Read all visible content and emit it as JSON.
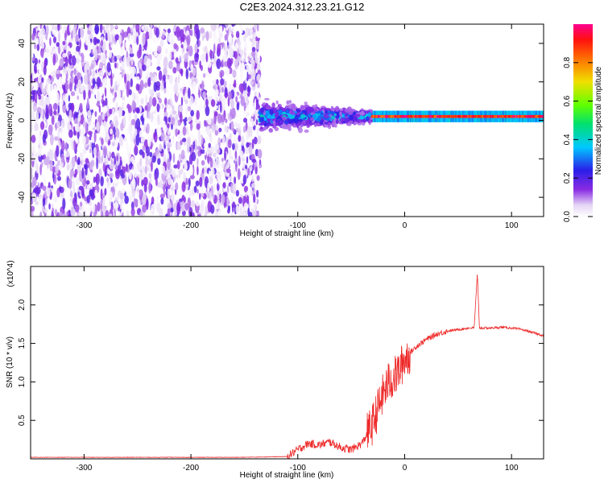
{
  "title": "C2E3.2024.312.23.21.G12",
  "chart_data": [
    {
      "type": "heatmap",
      "xlabel": "Height of straight line (km)",
      "ylabel": "Frequency (Hz)",
      "xlim": [
        -350,
        130
      ],
      "ylim": [
        -50,
        50
      ],
      "xticks": [
        -300,
        -200,
        -100,
        0,
        100
      ],
      "yticks": [
        -40,
        -20,
        0,
        20,
        40
      ],
      "colorbar": {
        "label": "Normalized spectral amplitude",
        "range": [
          0.0,
          1.0
        ],
        "ticks": [
          0.0,
          0.2,
          0.4,
          0.6,
          0.8
        ],
        "colormap": "rainbow (white-purple-blue-cyan-green-yellow-red-magenta)"
      },
      "regions": [
        {
          "x_range": [
            -350,
            -135
          ],
          "description": "broadband noise speckle across full frequency range",
          "amplitude_range": [
            0.0,
            0.2
          ]
        },
        {
          "x_range": [
            -135,
            -30
          ],
          "center_frequency": 2,
          "frequency_spread": 12,
          "amplitude_range": [
            0.1,
            0.45
          ]
        },
        {
          "x_range": [
            -30,
            130
          ],
          "center_frequency": 2,
          "frequency_spread": 2,
          "amplitude_range": [
            0.6,
            1.0
          ]
        }
      ]
    },
    {
      "type": "line",
      "xlabel": "Height of straight line (km)",
      "ylabel": "SNR (10 * v/v)",
      "yscale_label": "(x10^4)",
      "xlim": [
        -350,
        130
      ],
      "ylim": [
        0,
        2.5
      ],
      "xticks": [
        -300,
        -200,
        -100,
        0,
        100
      ],
      "yticks": [
        0.5,
        1.0,
        1.5,
        2.0
      ],
      "color": "#ee2a2a",
      "x": [
        -350,
        -300,
        -250,
        -200,
        -150,
        -110,
        -100,
        -90,
        -80,
        -70,
        -60,
        -50,
        -40,
        -30,
        -25,
        -20,
        -15,
        -10,
        -5,
        0,
        10,
        20,
        30,
        40,
        50,
        60,
        65,
        68,
        70,
        80,
        90,
        100,
        110,
        120,
        130
      ],
      "y": [
        0.02,
        0.02,
        0.02,
        0.02,
        0.02,
        0.03,
        0.12,
        0.2,
        0.18,
        0.22,
        0.15,
        0.12,
        0.2,
        0.45,
        0.65,
        0.85,
        1.0,
        1.05,
        1.15,
        1.3,
        1.45,
        1.55,
        1.62,
        1.66,
        1.68,
        1.7,
        1.7,
        2.4,
        1.7,
        1.7,
        1.71,
        1.7,
        1.68,
        1.64,
        1.6
      ]
    }
  ]
}
